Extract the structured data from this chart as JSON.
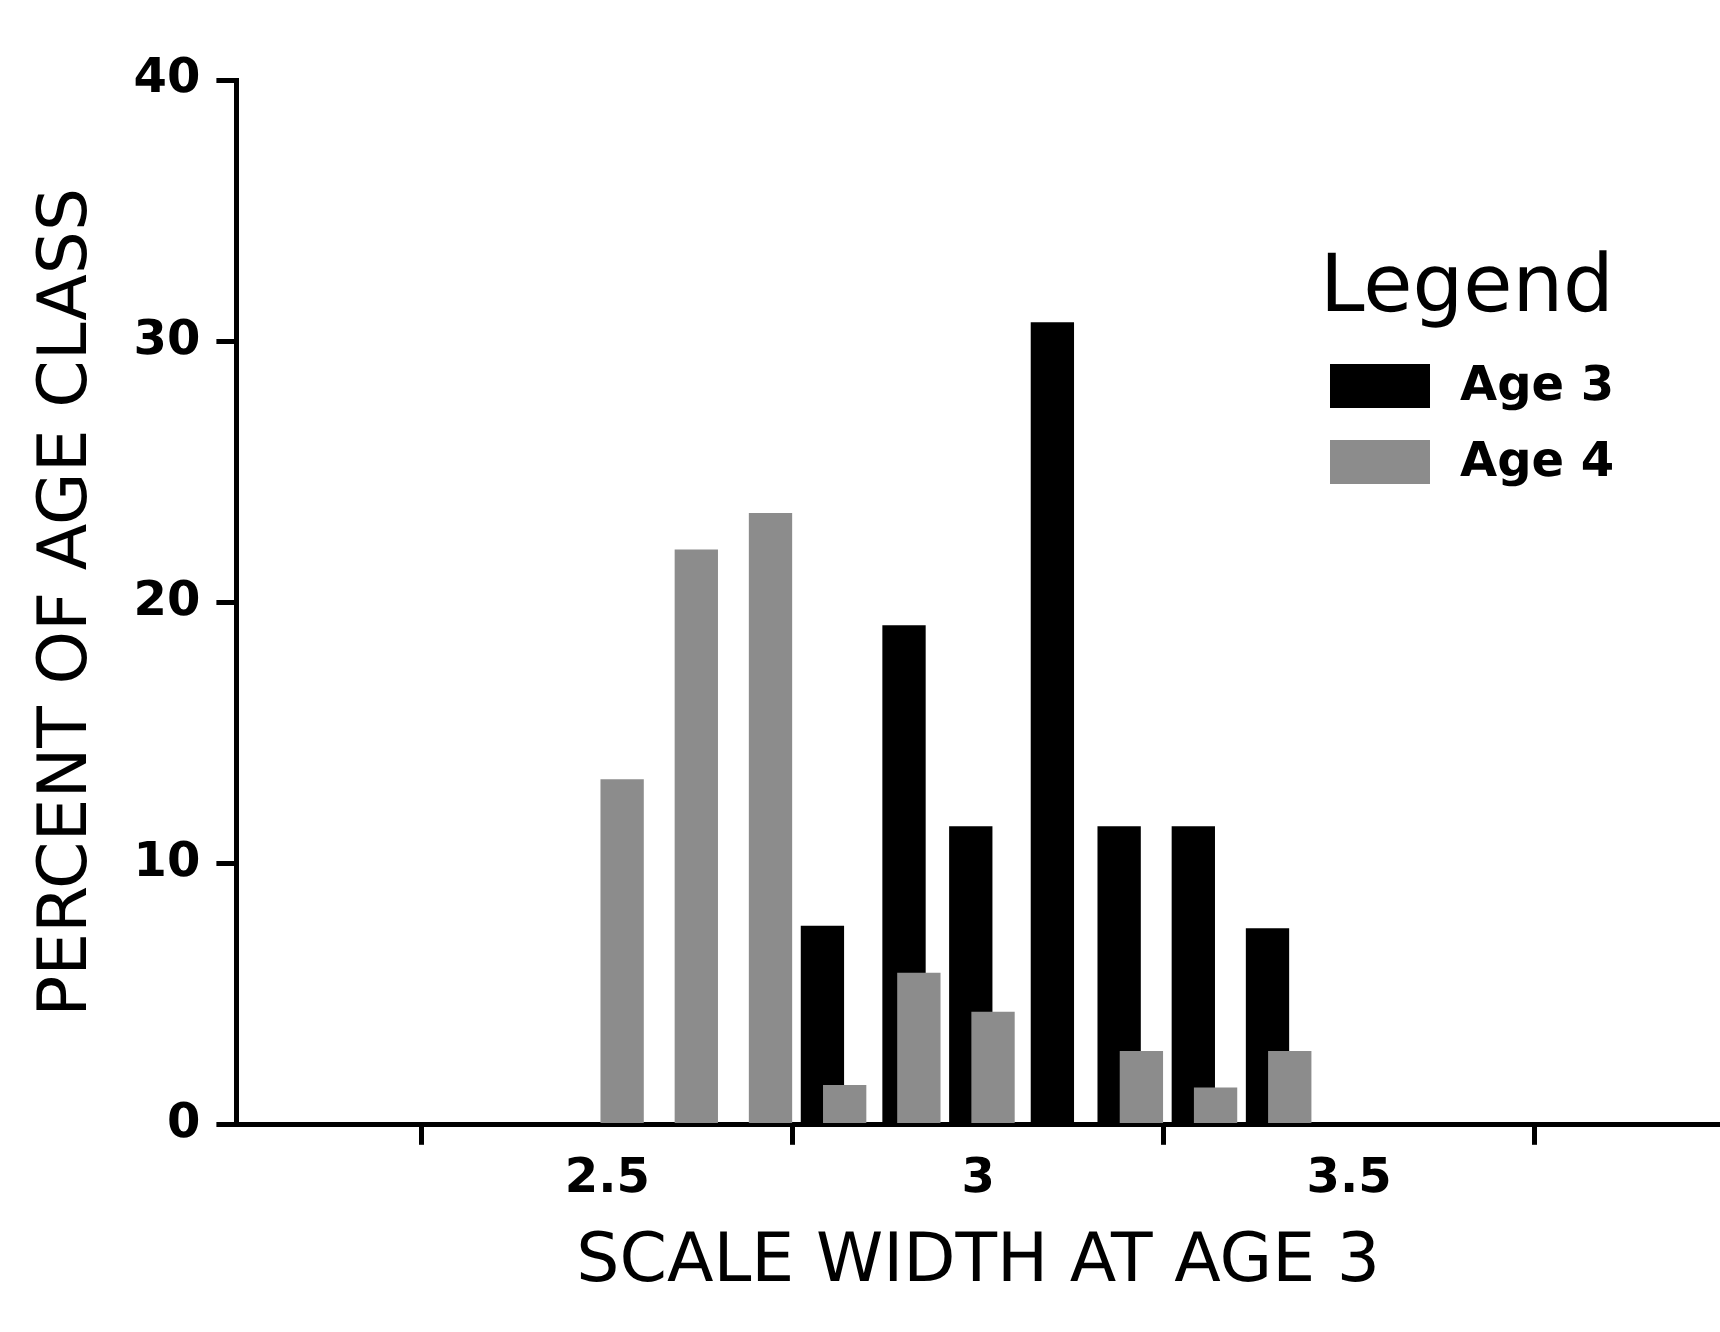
{
  "chart_data": {
    "type": "bar",
    "xlabel": "SCALE WIDTH AT AGE 3",
    "ylabel": "PERCENT OF AGE CLASS",
    "legend_title": "Legend",
    "xlim": [
      2,
      4
    ],
    "xticks": [
      2.5,
      3,
      3.5
    ],
    "ylim": [
      0,
      40
    ],
    "yticks": [
      0,
      10,
      20,
      30,
      40
    ],
    "grid": false,
    "legend": "top right",
    "series": [
      {
        "name": "Age 3",
        "color": "#000000",
        "x": [
          2.79,
          2.9,
          2.99,
          3.1,
          3.19,
          3.29,
          3.39
        ],
        "values": [
          7.6,
          19.1,
          11.4,
          30.7,
          11.4,
          11.4,
          7.5
        ]
      },
      {
        "name": "Age 4",
        "color": "#8c8c8c",
        "x": [
          2.52,
          2.62,
          2.72,
          2.82,
          2.92,
          3.02,
          3.22,
          3.32,
          3.42
        ],
        "values": [
          13.2,
          22.0,
          23.4,
          1.5,
          5.8,
          4.3,
          2.8,
          1.4,
          2.8
        ]
      }
    ]
  }
}
